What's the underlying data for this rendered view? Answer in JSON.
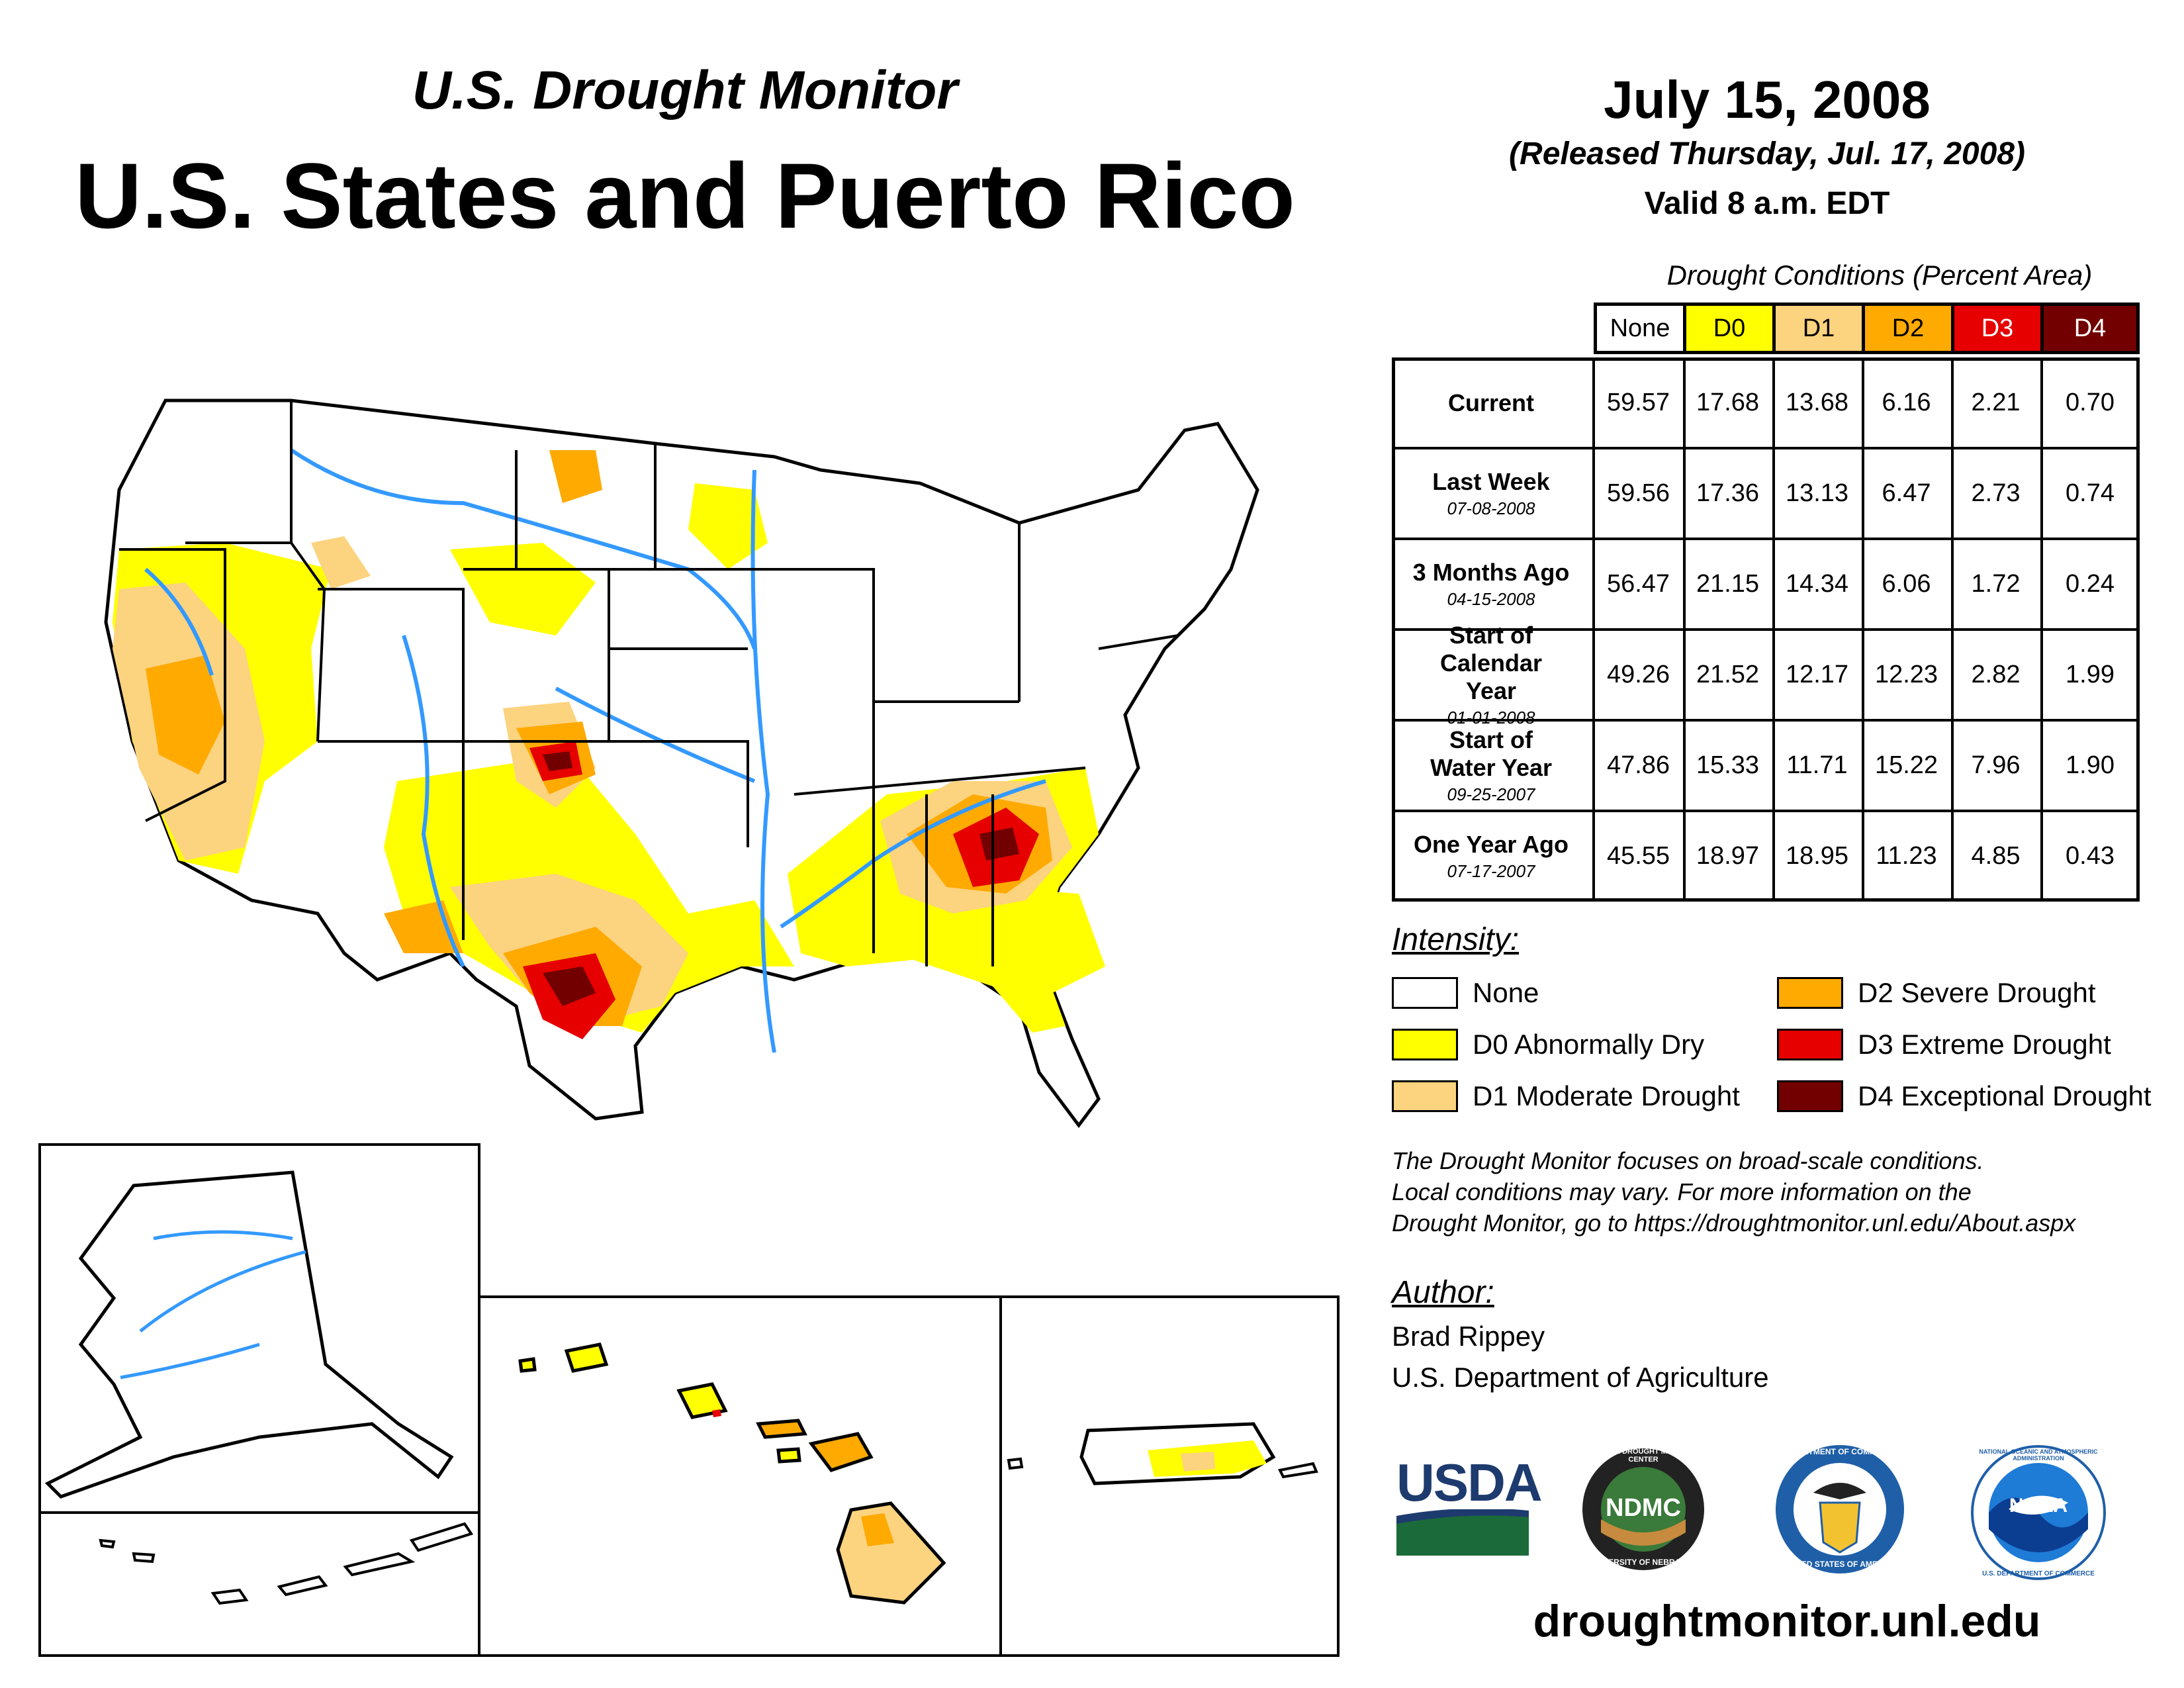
{
  "header": {
    "subtitle": "U.S. Drought Monitor",
    "title": "U.S. States and Puerto Rico",
    "date": "July 15, 2008",
    "released": "(Released Thursday, Jul. 17, 2008)",
    "valid": "Valid 8 a.m. EDT"
  },
  "table": {
    "caption": "Drought Conditions (Percent Area)",
    "columns": [
      "None",
      "D0",
      "D1",
      "D2",
      "D3",
      "D4"
    ],
    "column_colors": [
      "#ffffff",
      "#ffff00",
      "#fcd37f",
      "#ffaa00",
      "#e60000",
      "#730000"
    ],
    "column_text_colors": [
      "#000000",
      "#000000",
      "#000000",
      "#000000",
      "#ffffff",
      "#ffffff"
    ],
    "rows": [
      {
        "label": "Current",
        "date": "",
        "values": [
          "59.57",
          "17.68",
          "13.68",
          "6.16",
          "2.21",
          "0.70"
        ]
      },
      {
        "label": "Last Week",
        "date": "07-08-2008",
        "values": [
          "59.56",
          "17.36",
          "13.13",
          "6.47",
          "2.73",
          "0.74"
        ]
      },
      {
        "label": "3 Months Ago",
        "date": "04-15-2008",
        "values": [
          "56.47",
          "21.15",
          "14.34",
          "6.06",
          "1.72",
          "0.24"
        ]
      },
      {
        "label": "Start of Calendar Year",
        "date": "01-01-2008",
        "values": [
          "49.26",
          "21.52",
          "12.17",
          "12.23",
          "2.82",
          "1.99"
        ]
      },
      {
        "label": "Start of Water Year",
        "date": "09-25-2007",
        "values": [
          "47.86",
          "15.33",
          "11.71",
          "15.22",
          "7.96",
          "1.90"
        ]
      },
      {
        "label": "One Year Ago",
        "date": "07-17-2007",
        "values": [
          "45.55",
          "18.97",
          "18.95",
          "11.23",
          "4.85",
          "0.43"
        ]
      }
    ]
  },
  "legend": {
    "title": "Intensity:",
    "items": [
      {
        "label": "None",
        "color": "#ffffff"
      },
      {
        "label": "D0 Abnormally Dry",
        "color": "#ffff00"
      },
      {
        "label": "D1 Moderate Drought",
        "color": "#fcd37f"
      },
      {
        "label": "D2 Severe Drought",
        "color": "#ffaa00"
      },
      {
        "label": "D3 Extreme Drought",
        "color": "#e60000"
      },
      {
        "label": "D4 Exceptional Drought",
        "color": "#730000"
      }
    ]
  },
  "note": {
    "line1": "The Drought Monitor focuses on broad-scale conditions.",
    "line2": "Local conditions may vary. For more information on the",
    "line3": "Drought Monitor, go to https://droughtmonitor.unl.edu/About.aspx"
  },
  "author": {
    "label": "Author:",
    "name": "Brad Rippey",
    "org": "U.S. Department of Agriculture"
  },
  "logos": {
    "usda": "USDA",
    "ndmc": "NDMC",
    "ndmc_ring_top": "NATIONAL DROUGHT MITIGATION CENTER",
    "ndmc_ring_bottom": "UNIVERSITY OF NEBRASKA",
    "commerce_ring_top": "DEPARTMENT OF COMMERCE",
    "commerce_ring_bottom": "UNITED STATES OF AMERICA",
    "noaa": "NOAA",
    "noaa_ring": "NATIONAL OCEANIC AND ATMOSPHERIC ADMINISTRATION",
    "noaa_ring_bottom": "U.S. DEPARTMENT OF COMMERCE"
  },
  "website": "droughtmonitor.unl.edu",
  "map_colors": {
    "none": "#ffffff",
    "d0": "#ffff00",
    "d1": "#fcd37f",
    "d2": "#ffaa00",
    "d3": "#e60000",
    "d4": "#730000",
    "river": "#3399ff",
    "border": "#000000"
  }
}
